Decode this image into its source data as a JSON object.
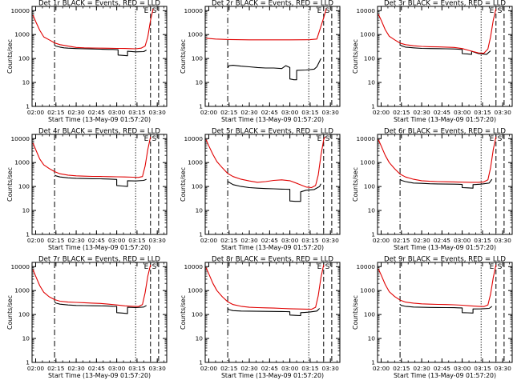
{
  "chart_data": {
    "type": "line",
    "layout": "3x3 grid of panels",
    "shared": {
      "xlabel": "Start Time (13-May-09 01:57:20)",
      "ylabel": "Counts/sec",
      "x_tick_labels": [
        "02:00",
        "02:15",
        "02:30",
        "02:45",
        "03:00",
        "03:15",
        "03:30"
      ],
      "x_range": [
        "01:57:20",
        "03:37:00"
      ],
      "y_scale": "log",
      "y_range": [
        1,
        15000
      ],
      "y_tick_labels": [
        "1",
        "10",
        "100",
        "1000",
        "10000"
      ],
      "series_colors": {
        "events": "#000000",
        "lld": "#e00000"
      },
      "grid": false,
      "markers": [
        {
          "label": "",
          "time": "02:14",
          "style": "dash-dot"
        },
        {
          "label": "",
          "time": "03:14",
          "style": "dotted"
        },
        {
          "label": "E",
          "time": "03:25",
          "style": "dashed"
        },
        {
          "label": "S",
          "time": "03:31",
          "style": "dashed"
        }
      ]
    },
    "panels": [
      {
        "title": "Det 1r BLACK = Events, RED = LLD",
        "series": [
          {
            "key": "events",
            "x": [
              "02:14",
              "02:15",
              "02:18",
              "02:21",
              "02:24",
              "02:30",
              "02:36",
              "02:42",
              "02:48",
              "02:54",
              "02:57",
              "03:01",
              "03:01",
              "03:04",
              "03:08",
              "03:08",
              "03:14",
              "03:20",
              "03:22"
            ],
            "values": [
              350,
              330,
              300,
              280,
              270,
              260,
              255,
              250,
              245,
              240,
              240,
              232,
              140,
              135,
              130,
              200,
              190,
              195,
              225
            ]
          },
          {
            "key": "lld",
            "x": [
              "01:58",
              "02:00",
              "02:03",
              "02:06",
              "02:10",
              "02:14",
              "02:18",
              "02:24",
              "02:30",
              "02:36",
              "02:42",
              "02:48",
              "02:54",
              "03:00",
              "03:06",
              "03:10",
              "03:14",
              "03:18",
              "03:21",
              "03:23",
              "03:25",
              "03:27"
            ],
            "values": [
              6500,
              3500,
              1500,
              800,
              600,
              450,
              380,
              330,
              290,
              280,
              275,
              270,
              268,
              265,
              262,
              258,
              255,
              270,
              330,
              800,
              4000,
              12000
            ]
          }
        ]
      },
      {
        "title": "Det 2r BLACK = Events, RED = LLD",
        "series": [
          {
            "key": "events",
            "x": [
              "02:14",
              "02:15",
              "02:18",
              "02:24",
              "02:30",
              "02:36",
              "02:42",
              "02:48",
              "02:54",
              "02:57",
              "03:00",
              "03:00",
              "03:03",
              "03:05",
              "03:05",
              "03:12",
              "03:18",
              "03:20",
              "03:23"
            ],
            "values": [
              40,
              50,
              52,
              48,
              45,
              42,
              40,
              40,
              38,
              50,
              42,
              14,
              13,
              13,
              32,
              33,
              36,
              45,
              100
            ]
          },
          {
            "key": "lld",
            "x": [
              "01:58",
              "02:05",
              "02:15",
              "02:30",
              "02:45",
              "03:00",
              "03:15",
              "03:20",
              "03:25",
              "03:27"
            ],
            "values": [
              700,
              650,
              620,
              600,
              600,
              600,
              610,
              650,
              5000,
              12000
            ]
          }
        ]
      },
      {
        "title": "Det 3r BLACK = Events, RED = LLD",
        "series": [
          {
            "key": "events",
            "x": [
              "02:14",
              "02:15",
              "02:18",
              "02:24",
              "02:30",
              "02:36",
              "02:42",
              "02:48",
              "02:54",
              "02:57",
              "03:00",
              "03:00",
              "03:04",
              "03:07",
              "03:07",
              "03:12",
              "03:18",
              "03:21"
            ],
            "values": [
              370,
              340,
              300,
              280,
              265,
              260,
              258,
              255,
              250,
              245,
              240,
              160,
              155,
              150,
              200,
              160,
              150,
              210
            ]
          },
          {
            "key": "lld",
            "x": [
              "01:58",
              "02:00",
              "02:03",
              "02:06",
              "02:10",
              "02:14",
              "02:18",
              "02:24",
              "02:30",
              "02:36",
              "02:42",
              "02:48",
              "02:54",
              "03:00",
              "03:06",
              "03:12",
              "03:16",
              "03:19",
              "03:21",
              "03:23",
              "03:25"
            ],
            "values": [
              7000,
              4000,
              1600,
              850,
              600,
              440,
              380,
              340,
              320,
              310,
              305,
              300,
              290,
              260,
              210,
              170,
              165,
              250,
              800,
              4000,
              12000
            ]
          }
        ]
      },
      {
        "title": "Det 4r BLACK = Events, RED = LLD",
        "series": [
          {
            "key": "events",
            "x": [
              "02:14",
              "02:15",
              "02:18",
              "02:24",
              "02:30",
              "02:36",
              "02:42",
              "02:48",
              "02:54",
              "02:57",
              "03:00",
              "03:00",
              "03:04",
              "03:08",
              "03:08",
              "03:14",
              "03:20",
              "03:22"
            ],
            "values": [
              300,
              280,
              250,
              230,
              220,
              215,
              212,
              210,
              205,
              200,
              198,
              110,
              105,
              100,
              175,
              170,
              180,
              200
            ]
          },
          {
            "key": "lld",
            "x": [
              "01:58",
              "02:00",
              "02:03",
              "02:06",
              "02:10",
              "02:14",
              "02:18",
              "02:24",
              "02:30",
              "02:36",
              "02:42",
              "02:48",
              "02:54",
              "03:00",
              "03:06",
              "03:12",
              "03:16",
              "03:19",
              "03:21",
              "03:23",
              "03:25"
            ],
            "values": [
              6500,
              3500,
              1400,
              800,
              560,
              420,
              340,
              300,
              280,
              270,
              265,
              262,
              258,
              255,
              250,
              245,
              240,
              260,
              700,
              3500,
              12000
            ]
          }
        ]
      },
      {
        "title": "Det 5r BLACK = Events, RED = LLD",
        "series": [
          {
            "key": "events",
            "x": [
              "02:14",
              "02:15",
              "02:18",
              "02:24",
              "02:30",
              "02:36",
              "02:42",
              "02:48",
              "02:54",
              "02:57",
              "03:00",
              "03:00",
              "03:04",
              "03:08",
              "03:08",
              "03:12",
              "03:18",
              "03:22",
              "03:23"
            ],
            "values": [
              160,
              150,
              120,
              100,
              90,
              85,
              82,
              80,
              78,
              77,
              76,
              25,
              24,
              24,
              60,
              70,
              75,
              100,
              130
            ]
          },
          {
            "key": "lld",
            "x": [
              "01:58",
              "02:00",
              "02:03",
              "02:06",
              "02:10",
              "02:14",
              "02:18",
              "02:24",
              "02:30",
              "02:36",
              "02:42",
              "02:48",
              "02:54",
              "03:00",
              "03:06",
              "03:12",
              "03:16",
              "03:19",
              "03:21",
              "03:23",
              "03:25",
              "03:26"
            ],
            "values": [
              9000,
              5000,
              2200,
              1100,
              600,
              350,
              260,
              200,
              170,
              150,
              160,
              180,
              190,
              175,
              130,
              95,
              90,
              110,
              300,
              2000,
              9000,
              12000
            ]
          }
        ]
      },
      {
        "title": "Det 6r BLACK = Events, RED = LLD",
        "series": [
          {
            "key": "events",
            "x": [
              "02:14",
              "02:15",
              "02:18",
              "02:24",
              "02:30",
              "02:36",
              "02:42",
              "02:48",
              "02:54",
              "02:57",
              "03:00",
              "03:00",
              "03:04",
              "03:08",
              "03:08",
              "03:14",
              "03:20",
              "03:22"
            ],
            "values": [
              200,
              180,
              160,
              140,
              135,
              130,
              128,
              126,
              125,
              124,
              122,
              90,
              88,
              85,
              120,
              125,
              140,
              200
            ]
          },
          {
            "key": "lld",
            "x": [
              "01:58",
              "02:00",
              "02:03",
              "02:06",
              "02:10",
              "02:14",
              "02:18",
              "02:24",
              "02:30",
              "02:36",
              "02:42",
              "02:48",
              "02:54",
              "03:00",
              "03:06",
              "03:12",
              "03:16",
              "03:19",
              "03:21",
              "03:23",
              "03:25"
            ],
            "values": [
              9000,
              5000,
              2000,
              1000,
              550,
              330,
              250,
              200,
              175,
              165,
              160,
              158,
              155,
              152,
              150,
              150,
              155,
              190,
              600,
              3500,
              12000
            ]
          }
        ]
      },
      {
        "title": "Det 7r BLACK = Events, RED = LLD",
        "series": [
          {
            "key": "events",
            "x": [
              "02:14",
              "02:15",
              "02:18",
              "02:24",
              "02:30",
              "02:36",
              "02:42",
              "02:48",
              "02:54",
              "02:57",
              "03:00",
              "03:00",
              "03:04",
              "03:08",
              "03:08",
              "03:14",
              "03:20",
              "03:22"
            ],
            "values": [
              330,
              300,
              270,
              250,
              240,
              235,
              232,
              230,
              225,
              220,
              218,
              120,
              115,
              110,
              200,
              195,
              205,
              240
            ]
          },
          {
            "key": "lld",
            "x": [
              "01:58",
              "02:00",
              "02:03",
              "02:06",
              "02:10",
              "02:14",
              "02:18",
              "02:24",
              "02:30",
              "02:36",
              "02:42",
              "02:48",
              "02:54",
              "03:00",
              "03:06",
              "03:12",
              "03:16",
              "03:19",
              "03:21",
              "03:23",
              "03:25"
            ],
            "values": [
              7500,
              4000,
              1600,
              850,
              550,
              420,
              360,
              330,
              320,
              310,
              300,
              290,
              270,
              250,
              230,
              220,
              215,
              260,
              800,
              4000,
              12000
            ]
          }
        ]
      },
      {
        "title": "Det 8r BLACK = Events, RED = LLD",
        "series": [
          {
            "key": "events",
            "x": [
              "02:14",
              "02:15",
              "02:18",
              "02:24",
              "02:30",
              "02:36",
              "02:42",
              "02:48",
              "02:54",
              "02:57",
              "03:00",
              "03:00",
              "03:04",
              "03:08",
              "03:08",
              "03:14",
              "03:20",
              "03:22"
            ],
            "values": [
              180,
              160,
              145,
              140,
              138,
              136,
              135,
              134,
              133,
              132,
              130,
              95,
              92,
              90,
              120,
              125,
              140,
              180
            ]
          },
          {
            "key": "lld",
            "x": [
              "01:58",
              "02:00",
              "02:03",
              "02:06",
              "02:10",
              "02:14",
              "02:18",
              "02:24",
              "02:30",
              "02:36",
              "02:42",
              "02:48",
              "02:54",
              "03:00",
              "03:06",
              "03:12",
              "03:16",
              "03:19",
              "03:21",
              "03:23",
              "03:25"
            ],
            "values": [
              9000,
              5000,
              2000,
              1000,
              550,
              340,
              260,
              220,
              200,
              195,
              190,
              185,
              180,
              175,
              170,
              168,
              165,
              200,
              600,
              3500,
              12000
            ]
          }
        ]
      },
      {
        "title": "Det 9r BLACK = Events, RED = LLD",
        "series": [
          {
            "key": "events",
            "x": [
              "02:14",
              "02:15",
              "02:18",
              "02:24",
              "02:30",
              "02:36",
              "02:42",
              "02:48",
              "02:54",
              "02:57",
              "03:00",
              "03:00",
              "03:04",
              "03:08",
              "03:08",
              "03:14",
              "03:20",
              "03:22"
            ],
            "values": [
              260,
              240,
              220,
              205,
              200,
              198,
              196,
              195,
              193,
              190,
              188,
              120,
              118,
              115,
              170,
              172,
              180,
              220
            ]
          },
          {
            "key": "lld",
            "x": [
              "01:58",
              "02:00",
              "02:03",
              "02:06",
              "02:10",
              "02:14",
              "02:18",
              "02:24",
              "02:30",
              "02:36",
              "02:42",
              "02:48",
              "02:54",
              "03:00",
              "03:06",
              "03:12",
              "03:16",
              "03:19",
              "03:21",
              "03:23",
              "03:25"
            ],
            "values": [
              8000,
              4500,
              1800,
              900,
              560,
              400,
              330,
              300,
              280,
              270,
              265,
              260,
              255,
              245,
              230,
              220,
              215,
              250,
              700,
              3500,
              12000
            ]
          }
        ]
      }
    ]
  }
}
